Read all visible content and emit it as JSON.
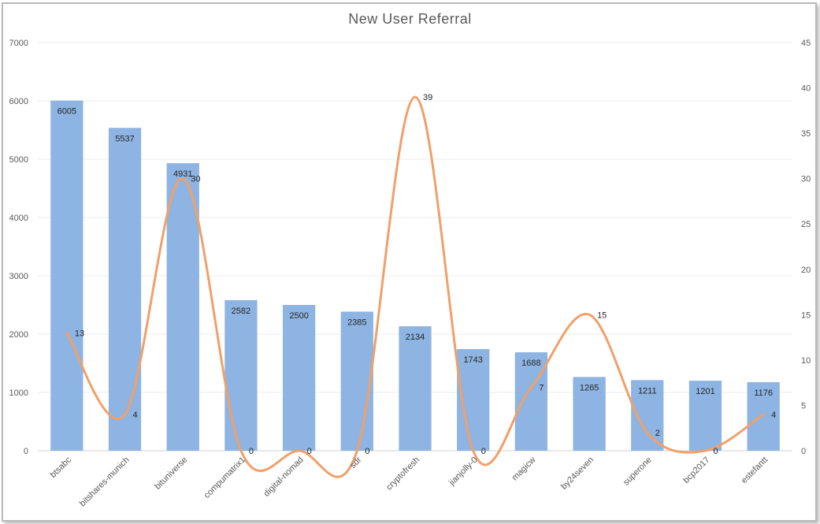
{
  "chart_data": {
    "type": "bar",
    "title": "New User Referral",
    "categories": [
      "btsabc",
      "bitshares-munich",
      "bituniverse",
      "compumatrix1",
      "digital-nomad",
      "sdr",
      "cryptofresh",
      "jianjolly-0",
      "magicw",
      "by24seven",
      "superone",
      "bcp2017",
      "estefantt"
    ],
    "series": [
      {
        "type": "bar",
        "axis": "left",
        "color": "#8db4e2",
        "values": [
          6005,
          5537,
          4931,
          2582,
          2500,
          2385,
          2134,
          1743,
          1688,
          1265,
          1211,
          1201,
          1176
        ]
      },
      {
        "type": "line",
        "axis": "right",
        "smooth": true,
        "color": "#f0a06a",
        "values": [
          13,
          4,
          30,
          0,
          0,
          0,
          39,
          0,
          7,
          15,
          2,
          0,
          4
        ]
      }
    ],
    "y_left": {
      "min": 0,
      "max": 7000,
      "step": 1000
    },
    "y_right": {
      "min": 0,
      "max": 45,
      "step": 5
    },
    "grid": true,
    "legend": "none"
  }
}
